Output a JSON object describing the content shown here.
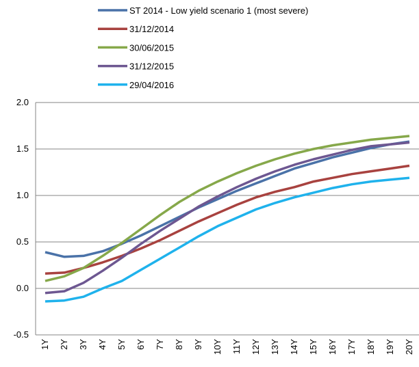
{
  "chart_data": {
    "type": "line",
    "categories": [
      "1Y",
      "2Y",
      "3Y",
      "4Y",
      "5Y",
      "6Y",
      "7Y",
      "8Y",
      "9Y",
      "10Y",
      "11Y",
      "12Y",
      "13Y",
      "14Y",
      "15Y",
      "16Y",
      "17Y",
      "18Y",
      "19Y",
      "20Y"
    ],
    "series": [
      {
        "name": "ST 2014 - Low yield scenario 1 (most severe)",
        "color": "#4a72a8",
        "values": [
          0.39,
          0.34,
          0.35,
          0.4,
          0.48,
          0.57,
          0.67,
          0.77,
          0.87,
          0.96,
          1.05,
          1.13,
          1.21,
          1.29,
          1.35,
          1.41,
          1.46,
          1.51,
          1.55,
          1.58
        ]
      },
      {
        "name": "31/12/2014",
        "color": "#a8423f",
        "values": [
          0.16,
          0.17,
          0.22,
          0.28,
          0.35,
          0.43,
          0.52,
          0.62,
          0.72,
          0.81,
          0.9,
          0.98,
          1.04,
          1.09,
          1.15,
          1.19,
          1.23,
          1.26,
          1.29,
          1.32
        ]
      },
      {
        "name": "30/06/2015",
        "color": "#86a84a",
        "values": [
          0.08,
          0.13,
          0.22,
          0.35,
          0.49,
          0.64,
          0.79,
          0.93,
          1.05,
          1.15,
          1.24,
          1.32,
          1.39,
          1.45,
          1.5,
          1.54,
          1.57,
          1.6,
          1.62,
          1.64
        ]
      },
      {
        "name": "31/12/2015",
        "color": "#6d5791",
        "values": [
          -0.05,
          -0.03,
          0.06,
          0.19,
          0.33,
          0.48,
          0.62,
          0.75,
          0.88,
          0.99,
          1.09,
          1.18,
          1.26,
          1.33,
          1.39,
          1.44,
          1.49,
          1.53,
          1.55,
          1.57
        ]
      },
      {
        "name": "29/04/2016",
        "color": "#1fb2ec",
        "values": [
          -0.14,
          -0.13,
          -0.09,
          0.0,
          0.08,
          0.2,
          0.32,
          0.44,
          0.56,
          0.67,
          0.76,
          0.85,
          0.92,
          0.98,
          1.03,
          1.08,
          1.12,
          1.15,
          1.17,
          1.19
        ]
      }
    ],
    "ylim": [
      -0.5,
      2.0
    ],
    "yticks": [
      -0.5,
      {
        "value": 0,
        "label": "0.0"
      },
      0.5,
      {
        "value": 1,
        "label": "1.0"
      },
      1.5,
      {
        "value": 2,
        "label": "2.0"
      }
    ],
    "grid": true
  }
}
